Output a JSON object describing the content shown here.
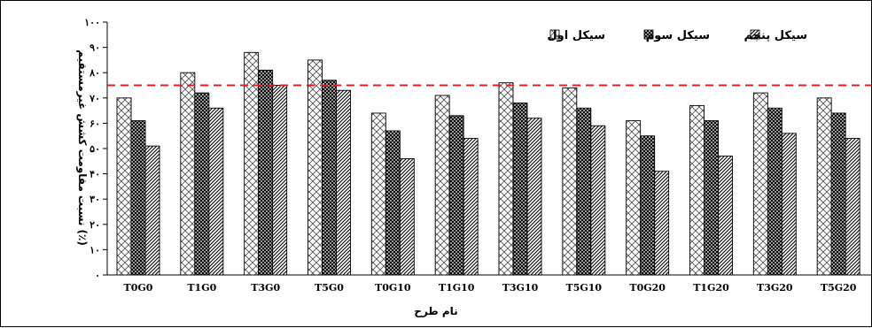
{
  "chart_data": {
    "type": "bar",
    "title": "",
    "xlabel": "نام طرح",
    "ylabel": "نسبت مقاومت کشش غیرمستقیم (٪)",
    "ylim": [
      0,
      100
    ],
    "yticks": [
      "۰",
      "۱۰",
      "۲۰",
      "۳۰",
      "۴۰",
      "۵۰",
      "۶۰",
      "۷۰",
      "۸۰",
      "۹۰",
      "۱۰۰"
    ],
    "reference_line": {
      "value": 75,
      "color": "#e02020",
      "style": "dashed"
    },
    "legend_position": "top-right",
    "categories": [
      "T0G0",
      "T1G0",
      "T3G0",
      "T5G0",
      "T0G10",
      "T1G10",
      "T3G10",
      "T5G10",
      "T0G20",
      "T1G20",
      "T3G20",
      "T5G20"
    ],
    "series": [
      {
        "name": "سیکل اول",
        "pattern": "light-crosshatch",
        "values": [
          70,
          80,
          88,
          85,
          64,
          71,
          76,
          74,
          61,
          67,
          72,
          70
        ]
      },
      {
        "name": "سیکل سوم",
        "pattern": "dense-grid",
        "values": [
          61,
          72,
          81,
          77,
          57,
          63,
          68,
          66,
          55,
          61,
          66,
          64
        ]
      },
      {
        "name": "سیکل پنجم",
        "pattern": "diagonal",
        "values": [
          51,
          66,
          75,
          73,
          46,
          54,
          62,
          59,
          41,
          47,
          56,
          54
        ]
      }
    ]
  }
}
